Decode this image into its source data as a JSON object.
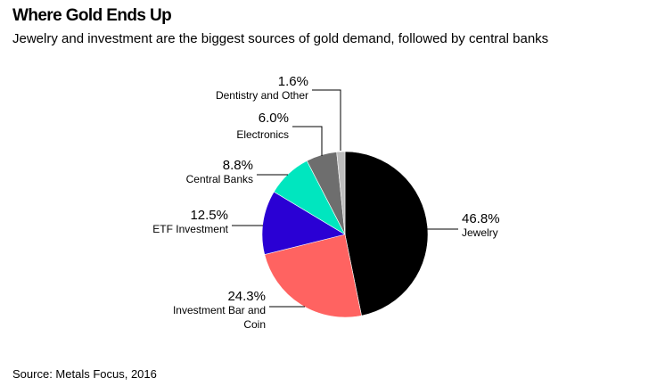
{
  "title": "Where Gold Ends Up",
  "subtitle": "Jewelry and investment are the biggest sources of gold demand, followed by central banks",
  "source": "Source: Metals Focus, 2016",
  "chart_data": {
    "type": "pie",
    "slices": [
      {
        "name": "Jewelry",
        "value": 46.8,
        "label": "46.8%",
        "color": "#000000"
      },
      {
        "name": "Investment Bar and Coin",
        "value": 24.3,
        "label": "24.3%",
        "color": "#ff6361"
      },
      {
        "name": "ETF Investment",
        "value": 12.5,
        "label": "12.5%",
        "color": "#2a00d4"
      },
      {
        "name": "Central Banks",
        "value": 8.8,
        "label": "8.8%",
        "color": "#00e6bf"
      },
      {
        "name": "Electronics",
        "value": 6.0,
        "label": "6.0%",
        "color": "#6e6e6e"
      },
      {
        "name": "Dentistry and Other",
        "value": 1.6,
        "label": "1.6%",
        "color": "#bdbdbd"
      }
    ]
  }
}
